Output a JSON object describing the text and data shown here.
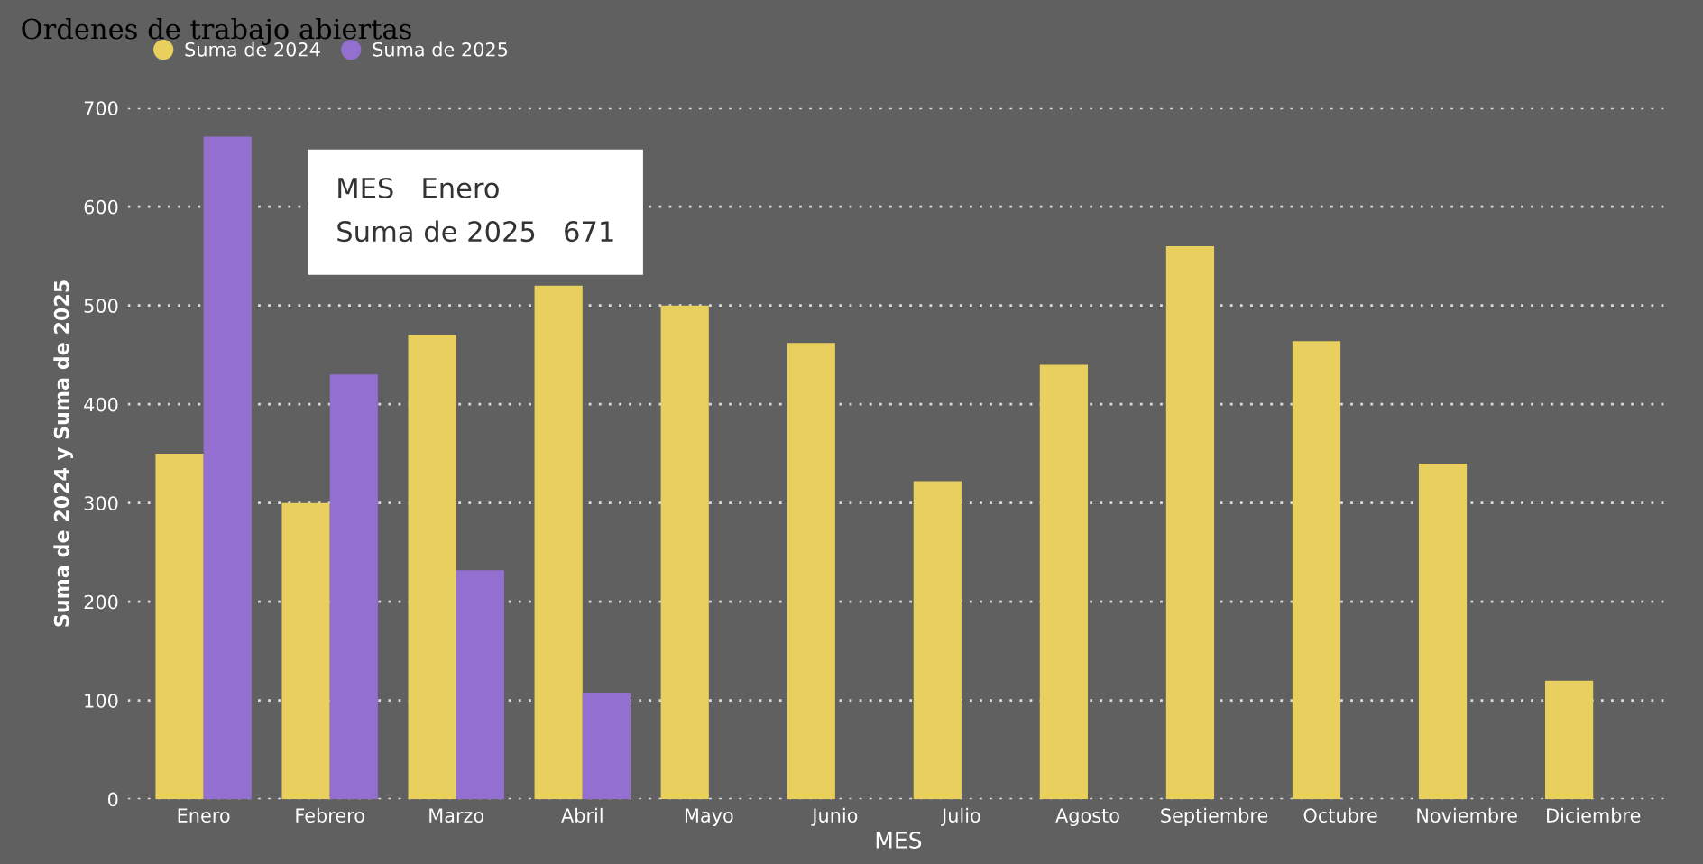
{
  "chart_data": {
    "type": "bar",
    "title": "Ordenes de trabajo abiertas",
    "xlabel": "MES",
    "ylabel": "Suma de 2024 y Suma de 2025",
    "categories": [
      "Enero",
      "Febrero",
      "Marzo",
      "Abril",
      "Mayo",
      "Junio",
      "Julio",
      "Agosto",
      "Septiembre",
      "Octubre",
      "Noviembre",
      "Diciembre"
    ],
    "series": [
      {
        "name": "Suma de 2024",
        "color": "#e8cf5e",
        "values": [
          350,
          300,
          470,
          520,
          500,
          462,
          322,
          440,
          560,
          464,
          340,
          120
        ]
      },
      {
        "name": "Suma de 2025",
        "color": "#9370d0",
        "values": [
          671,
          430,
          232,
          108,
          null,
          null,
          null,
          null,
          null,
          null,
          null,
          null
        ]
      }
    ],
    "ylim": [
      0,
      700
    ],
    "yticks": [
      0,
      100,
      200,
      300,
      400,
      500,
      600,
      700
    ],
    "grid": "y",
    "legend": "top left",
    "annotations": [
      "MES   Enero\nSuma de 2025   671"
    ]
  }
}
